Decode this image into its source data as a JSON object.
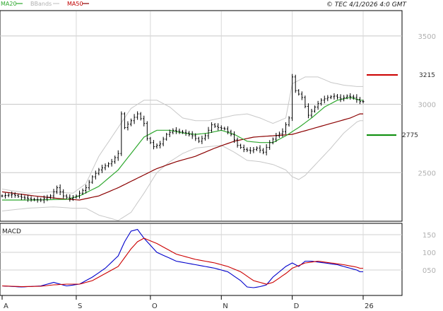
{
  "header": {
    "legend": [
      {
        "label": "MA20",
        "color": "#2ea82e",
        "line_color": "#2ea82e"
      },
      {
        "label": "BBands",
        "color": "#b0b0b0",
        "line_color": "#c8c8c8"
      },
      {
        "label": "MA50",
        "color": "#c00000",
        "line_color": "#8b0000"
      }
    ],
    "copyright": "© TEC 4/1/2026 4:0 GMT"
  },
  "chart_data": [
    {
      "type": "candlestick",
      "title": "",
      "x_tick_labels": [
        "A",
        "S",
        "O",
        "N",
        "D",
        "26"
      ],
      "x_tick_positions": [
        0,
        23,
        46,
        68,
        90,
        112
      ],
      "n_bars": 113,
      "ylim": [
        2150,
        3680
      ],
      "y_ticks": [
        2500,
        3000,
        3500
      ],
      "y_tick_labels": [
        "2500",
        "3000",
        "3500"
      ],
      "levels": [
        {
          "label": "3215",
          "value": 3215,
          "color": "#cc0000"
        },
        {
          "label": "2775",
          "value": 2775,
          "color": "#008800"
        }
      ],
      "close_anchors": [
        [
          0,
          2330
        ],
        [
          3,
          2340
        ],
        [
          6,
          2320
        ],
        [
          9,
          2305
        ],
        [
          12,
          2300
        ],
        [
          15,
          2330
        ],
        [
          17,
          2390
        ],
        [
          19,
          2330
        ],
        [
          21,
          2310
        ],
        [
          23,
          2330
        ],
        [
          26,
          2390
        ],
        [
          28,
          2470
        ],
        [
          30,
          2520
        ],
        [
          32,
          2550
        ],
        [
          34,
          2580
        ],
        [
          36,
          2640
        ],
        [
          37,
          2930
        ],
        [
          38,
          2830
        ],
        [
          40,
          2880
        ],
        [
          42,
          2930
        ],
        [
          44,
          2860
        ],
        [
          45,
          2750
        ],
        [
          47,
          2690
        ],
        [
          49,
          2710
        ],
        [
          51,
          2780
        ],
        [
          53,
          2810
        ],
        [
          55,
          2800
        ],
        [
          57,
          2790
        ],
        [
          59,
          2770
        ],
        [
          61,
          2730
        ],
        [
          63,
          2770
        ],
        [
          65,
          2850
        ],
        [
          67,
          2830
        ],
        [
          69,
          2820
        ],
        [
          71,
          2780
        ],
        [
          73,
          2700
        ],
        [
          75,
          2670
        ],
        [
          77,
          2660
        ],
        [
          79,
          2680
        ],
        [
          81,
          2650
        ],
        [
          83,
          2720
        ],
        [
          85,
          2770
        ],
        [
          87,
          2800
        ],
        [
          89,
          2900
        ],
        [
          90,
          3200
        ],
        [
          91,
          3100
        ],
        [
          93,
          3050
        ],
        [
          95,
          2920
        ],
        [
          97,
          2980
        ],
        [
          99,
          3030
        ],
        [
          101,
          3050
        ],
        [
          103,
          3060
        ],
        [
          105,
          3040
        ],
        [
          107,
          3060
        ],
        [
          109,
          3050
        ],
        [
          111,
          3020
        ]
      ],
      "ma20_anchors": [
        [
          0,
          2300
        ],
        [
          10,
          2300
        ],
        [
          20,
          2305
        ],
        [
          24,
          2330
        ],
        [
          30,
          2400
        ],
        [
          36,
          2520
        ],
        [
          40,
          2640
        ],
        [
          44,
          2760
        ],
        [
          48,
          2810
        ],
        [
          52,
          2810
        ],
        [
          56,
          2790
        ],
        [
          60,
          2780
        ],
        [
          64,
          2790
        ],
        [
          68,
          2810
        ],
        [
          72,
          2780
        ],
        [
          76,
          2730
        ],
        [
          80,
          2720
        ],
        [
          84,
          2720
        ],
        [
          88,
          2770
        ],
        [
          92,
          2830
        ],
        [
          96,
          2900
        ],
        [
          100,
          2980
        ],
        [
          104,
          3030
        ],
        [
          108,
          3050
        ],
        [
          111,
          3030
        ]
      ],
      "ma50_anchors": [
        [
          0,
          2360
        ],
        [
          10,
          2330
        ],
        [
          18,
          2310
        ],
        [
          24,
          2300
        ],
        [
          30,
          2330
        ],
        [
          36,
          2390
        ],
        [
          42,
          2460
        ],
        [
          48,
          2530
        ],
        [
          54,
          2580
        ],
        [
          60,
          2620
        ],
        [
          66,
          2680
        ],
        [
          72,
          2730
        ],
        [
          78,
          2760
        ],
        [
          84,
          2770
        ],
        [
          90,
          2780
        ],
        [
          96,
          2820
        ],
        [
          102,
          2860
        ],
        [
          108,
          2900
        ],
        [
          111,
          2930
        ]
      ],
      "bb_upper_anchors": [
        [
          0,
          2380
        ],
        [
          8,
          2350
        ],
        [
          16,
          2360
        ],
        [
          22,
          2350
        ],
        [
          26,
          2420
        ],
        [
          30,
          2620
        ],
        [
          36,
          2830
        ],
        [
          40,
          2970
        ],
        [
          44,
          3030
        ],
        [
          48,
          3030
        ],
        [
          52,
          2980
        ],
        [
          56,
          2900
        ],
        [
          60,
          2880
        ],
        [
          64,
          2880
        ],
        [
          68,
          2900
        ],
        [
          72,
          2920
        ],
        [
          76,
          2930
        ],
        [
          80,
          2900
        ],
        [
          84,
          2860
        ],
        [
          88,
          2900
        ],
        [
          90,
          3150
        ],
        [
          94,
          3200
        ],
        [
          98,
          3200
        ],
        [
          102,
          3160
        ],
        [
          106,
          3140
        ],
        [
          110,
          3130
        ],
        [
          111,
          3130
        ]
      ],
      "bb_lower_anchors": [
        [
          0,
          2220
        ],
        [
          8,
          2240
        ],
        [
          16,
          2250
        ],
        [
          22,
          2240
        ],
        [
          26,
          2240
        ],
        [
          30,
          2190
        ],
        [
          36,
          2150
        ],
        [
          40,
          2210
        ],
        [
          44,
          2350
        ],
        [
          48,
          2500
        ],
        [
          52,
          2580
        ],
        [
          56,
          2640
        ],
        [
          60,
          2680
        ],
        [
          64,
          2690
        ],
        [
          68,
          2700
        ],
        [
          72,
          2650
        ],
        [
          76,
          2590
        ],
        [
          80,
          2580
        ],
        [
          84,
          2560
        ],
        [
          88,
          2520
        ],
        [
          90,
          2470
        ],
        [
          92,
          2450
        ],
        [
          94,
          2480
        ],
        [
          98,
          2580
        ],
        [
          102,
          2680
        ],
        [
          106,
          2790
        ],
        [
          110,
          2870
        ],
        [
          111,
          2880
        ]
      ]
    },
    {
      "type": "line",
      "title": "MACD",
      "ylim": [
        -20,
        180
      ],
      "y_ticks": [
        50,
        100,
        150
      ],
      "y_tick_labels": [
        "050",
        "100",
        "150"
      ],
      "series": [
        {
          "name": "",
          "color": "#0000cc",
          "anchors": [
            [
              0,
              5
            ],
            [
              6,
              2
            ],
            [
              12,
              5
            ],
            [
              16,
              15
            ],
            [
              20,
              5
            ],
            [
              24,
              10
            ],
            [
              28,
              30
            ],
            [
              32,
              55
            ],
            [
              36,
              90
            ],
            [
              38,
              130
            ],
            [
              40,
              160
            ],
            [
              42,
              165
            ],
            [
              44,
              140
            ],
            [
              48,
              100
            ],
            [
              54,
              75
            ],
            [
              60,
              65
            ],
            [
              66,
              55
            ],
            [
              70,
              45
            ],
            [
              74,
              20
            ],
            [
              76,
              2
            ],
            [
              78,
              0
            ],
            [
              80,
              3
            ],
            [
              82,
              8
            ],
            [
              84,
              30
            ],
            [
              88,
              60
            ],
            [
              90,
              70
            ],
            [
              92,
              60
            ],
            [
              94,
              75
            ],
            [
              96,
              75
            ],
            [
              100,
              70
            ],
            [
              104,
              65
            ],
            [
              108,
              55
            ],
            [
              110,
              50
            ],
            [
              111,
              45
            ]
          ]
        },
        {
          "name": "",
          "color": "#cc0000",
          "anchors": [
            [
              0,
              5
            ],
            [
              6,
              3
            ],
            [
              12,
              4
            ],
            [
              16,
              8
            ],
            [
              20,
              10
            ],
            [
              24,
              10
            ],
            [
              28,
              20
            ],
            [
              32,
              40
            ],
            [
              36,
              60
            ],
            [
              40,
              110
            ],
            [
              42,
              130
            ],
            [
              44,
              140
            ],
            [
              48,
              125
            ],
            [
              54,
              95
            ],
            [
              60,
              80
            ],
            [
              66,
              70
            ],
            [
              70,
              60
            ],
            [
              74,
              45
            ],
            [
              78,
              20
            ],
            [
              82,
              10
            ],
            [
              84,
              15
            ],
            [
              88,
              40
            ],
            [
              90,
              55
            ],
            [
              94,
              70
            ],
            [
              98,
              75
            ],
            [
              102,
              70
            ],
            [
              106,
              65
            ],
            [
              110,
              58
            ],
            [
              111,
              55
            ]
          ]
        }
      ]
    }
  ]
}
